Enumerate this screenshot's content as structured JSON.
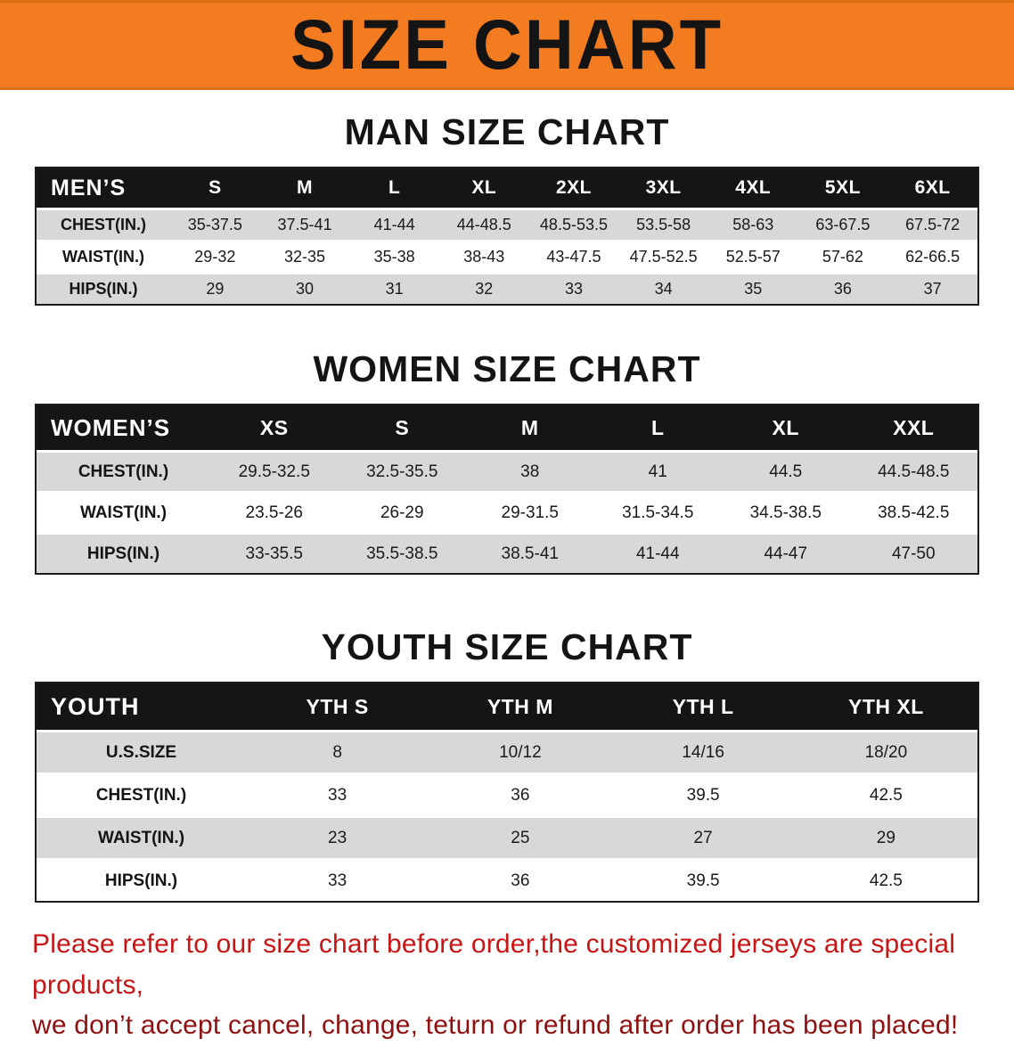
{
  "banner": {
    "title": "SIZE CHART"
  },
  "sections": [
    {
      "heading": "MAN SIZE CHART",
      "table": {
        "header": [
          "MEN’S",
          "S",
          "M",
          "L",
          "XL",
          "2XL",
          "3XL",
          "4XL",
          "5XL",
          "6XL"
        ],
        "rows": [
          {
            "label": "CHEST(IN.)",
            "values": [
              "35-37.5",
              "37.5-41",
              "41-44",
              "44-48.5",
              "48.5-53.5",
              "53.5-58",
              "58-63",
              "63-67.5",
              "67.5-72"
            ]
          },
          {
            "label": "WAIST(IN.)",
            "values": [
              "29-32",
              "32-35",
              "35-38",
              "38-43",
              "43-47.5",
              "47.5-52.5",
              "52.5-57",
              "57-62",
              "62-66.5"
            ]
          },
          {
            "label": "HIPS(IN.)",
            "values": [
              "29",
              "30",
              "31",
              "32",
              "33",
              "34",
              "35",
              "36",
              "37"
            ]
          }
        ]
      }
    },
    {
      "heading": "WOMEN SIZE CHART",
      "table": {
        "header": [
          "WOMEN’S",
          "XS",
          "S",
          "M",
          "L",
          "XL",
          "XXL"
        ],
        "rows": [
          {
            "label": "CHEST(IN.)",
            "values": [
              "29.5-32.5",
              "32.5-35.5",
              "38",
              "41",
              "44.5",
              "44.5-48.5"
            ]
          },
          {
            "label": "WAIST(IN.)",
            "values": [
              "23.5-26",
              "26-29",
              "29-31.5",
              "31.5-34.5",
              "34.5-38.5",
              "38.5-42.5"
            ]
          },
          {
            "label": "HIPS(IN.)",
            "values": [
              "33-35.5",
              "35.5-38.5",
              "38.5-41",
              "41-44",
              "44-47",
              "47-50"
            ]
          }
        ]
      }
    },
    {
      "heading": "YOUTH SIZE CHART",
      "table": {
        "header": [
          "YOUTH",
          "YTH S",
          "YTH M",
          "YTH L",
          "YTH XL"
        ],
        "rows": [
          {
            "label": "U.S.SIZE",
            "values": [
              "8",
              "10/12",
              "14/16",
              "18/20"
            ]
          },
          {
            "label": "CHEST(IN.)",
            "values": [
              "33",
              "36",
              "39.5",
              "42.5"
            ]
          },
          {
            "label": "WAIST(IN.)",
            "values": [
              "23",
              "25",
              "27",
              "29"
            ]
          },
          {
            "label": "HIPS(IN.)",
            "values": [
              "33",
              "36",
              "39.5",
              "42.5"
            ]
          }
        ]
      }
    }
  ],
  "footer": {
    "line1": "Please refer to our size chart before order,the customized jerseys are special products,",
    "line2": "we don’t accept cancel, change, teturn or refund after order has been placed!"
  },
  "colors": {
    "banner_orange": "#f47c20",
    "header_black": "#151515",
    "row_gray": "#d8d8d8",
    "notice_red": "#c81414",
    "notice_dark_red": "#8f1010"
  }
}
